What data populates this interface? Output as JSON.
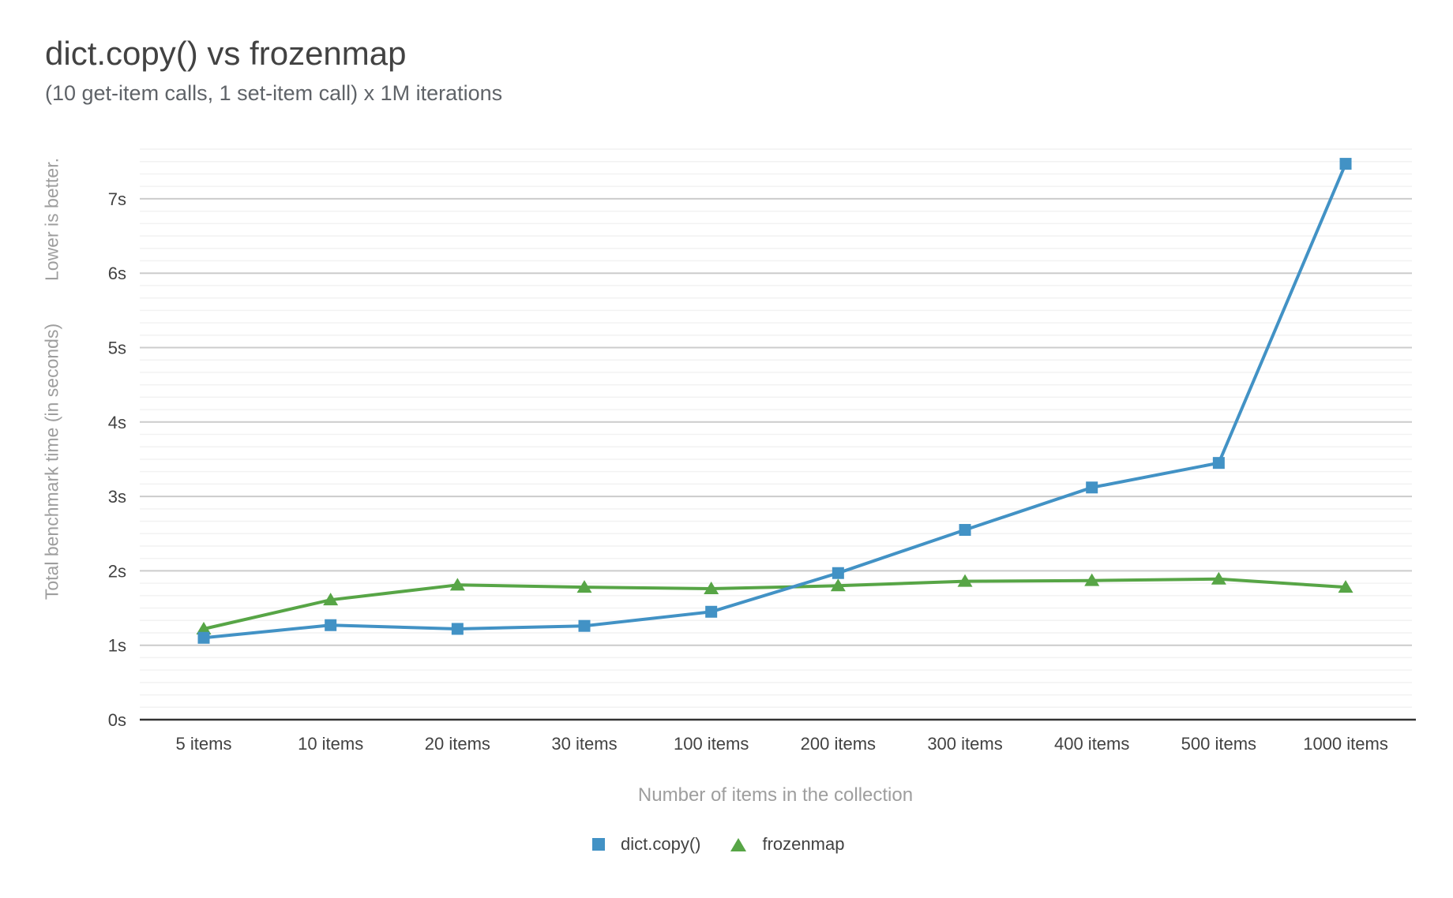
{
  "header": {
    "title": "dict.copy() vs frozenmap",
    "subtitle": "(10 get-item calls, 1 set-item call) x 1M iterations"
  },
  "axes": {
    "y_note": "Lower is better.",
    "y_title": "Total benchmark time (in seconds)",
    "x_title": "Number of items in the collection",
    "y_ticks": [
      "0s",
      "1s",
      "2s",
      "3s",
      "4s",
      "5s",
      "6s",
      "7s"
    ]
  },
  "legend": [
    {
      "label": "dict.copy()",
      "marker": "square",
      "color": "#4292c5"
    },
    {
      "label": "frozenmap",
      "marker": "triangle",
      "color": "#57a546"
    }
  ],
  "chart_data": {
    "type": "line",
    "title": "dict.copy() vs frozenmap",
    "subtitle": "(10 get-item calls, 1 set-item call) x 1M iterations",
    "xlabel": "Number of items in the collection",
    "ylabel": "Total benchmark time (in seconds)",
    "categories": [
      "5 items",
      "10 items",
      "20 items",
      "30 items",
      "100 items",
      "200 items",
      "300 items",
      "400 items",
      "500 items",
      "1000 items"
    ],
    "series": [
      {
        "name": "dict.copy()",
        "color": "#4292c5",
        "marker": "square",
        "values": [
          1.1,
          1.27,
          1.22,
          1.26,
          1.45,
          1.97,
          2.55,
          3.12,
          3.45,
          7.47
        ]
      },
      {
        "name": "frozenmap",
        "color": "#57a546",
        "marker": "triangle",
        "values": [
          1.22,
          1.61,
          1.81,
          1.78,
          1.76,
          1.8,
          1.86,
          1.87,
          1.89,
          1.78
        ]
      }
    ],
    "ylim": [
      0,
      7.83
    ],
    "y_major_step": 1,
    "y_minor_step": 0.1667,
    "grid": true,
    "legend_position": "bottom"
  },
  "colors": {
    "series_blue": "#4292c5",
    "series_green": "#57a546",
    "grid_major": "#cccccc",
    "grid_minor": "#f2f2f2",
    "axis_baseline": "#333333",
    "tick_label": "#424242",
    "axis_title": "#9e9e9e",
    "title_text": "#424242",
    "subtitle_text": "#5f6368"
  }
}
